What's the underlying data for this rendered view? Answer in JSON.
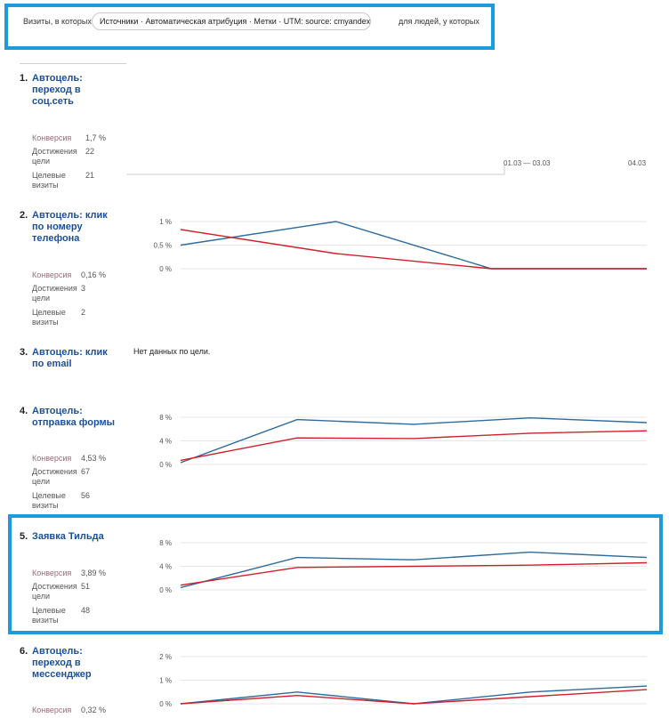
{
  "filter_bar": {
    "prefix": "Визиты, в которых",
    "segment": "Источники · Автоматическая атрибуция · Метки · UTM: source: cmyandex",
    "suffix": "для людей, у которых"
  },
  "labels": {
    "conversion": "Конверсия",
    "achievements": "Достижения цели",
    "target_visits": "Целевые визиты"
  },
  "goals": [
    {
      "num": "1.",
      "name": "Автоцель: переход в соц.сеть",
      "conversion": "1,7 %",
      "achievements": "22",
      "target_visits": "21"
    },
    {
      "num": "2.",
      "name": "Автоцель: клик по номеру телефона",
      "conversion": "0,16 %",
      "achievements": "3",
      "target_visits": "2"
    },
    {
      "num": "3.",
      "name": "Автоцель: клик по email",
      "no_data": "Нет данных по цели."
    },
    {
      "num": "4.",
      "name": "Автоцель: отправка формы",
      "conversion": "4,53 %",
      "achievements": "67",
      "target_visits": "56"
    },
    {
      "num": "5.",
      "name": "Заявка Тильда",
      "conversion": "3,89 %",
      "achievements": "51",
      "target_visits": "48"
    },
    {
      "num": "6.",
      "name": "Автоцель: переход в мессенджер",
      "conversion": "0,32 %"
    }
  ],
  "timeline": {
    "range_label": "01.03 — 03.03",
    "end_label": "04.03"
  },
  "colors": {
    "highlight": "#1a9bdc",
    "series_blue": "#2e6b9e",
    "series_red": "#d0202a",
    "grid": "#e6e6e6"
  },
  "chart_data": [
    {
      "type": "line",
      "goal": "Автоцель: клик по номеру телефона",
      "x": [
        0,
        1,
        2,
        3
      ],
      "y_ticks": [
        "1 %",
        "0,5 %",
        "0 %"
      ],
      "ylim": [
        0,
        1
      ],
      "series": [
        {
          "color": "#2e6b9e",
          "values": [
            0.5,
            1.0,
            0,
            0
          ]
        },
        {
          "color": "#d0202a",
          "values": [
            0.83,
            0.32,
            0,
            0
          ]
        }
      ]
    },
    {
      "type": "line",
      "goal": "Автоцель: отправка формы",
      "x": [
        0,
        1,
        2,
        3,
        4
      ],
      "y_ticks": [
        "8 %",
        "4 %",
        "0 %"
      ],
      "ylim": [
        0,
        8
      ],
      "series": [
        {
          "color": "#2e6b9e",
          "values": [
            0.3,
            7.6,
            6.8,
            7.9,
            7.1
          ]
        },
        {
          "color": "#d0202a",
          "values": [
            0.7,
            4.5,
            4.4,
            5.3,
            5.7
          ]
        }
      ]
    },
    {
      "type": "line",
      "goal": "Заявка Тильда",
      "x": [
        0,
        1,
        2,
        3,
        4
      ],
      "y_ticks": [
        "8 %",
        "4 %",
        "0 %"
      ],
      "ylim": [
        0,
        8
      ],
      "series": [
        {
          "color": "#2e6b9e",
          "values": [
            0.4,
            5.5,
            5.1,
            6.4,
            5.5
          ]
        },
        {
          "color": "#d0202a",
          "values": [
            0.8,
            3.8,
            4.0,
            4.2,
            4.6
          ]
        }
      ]
    },
    {
      "type": "line",
      "goal": "Автоцель: переход в мессенджер",
      "x": [
        0,
        1,
        2,
        3,
        4
      ],
      "y_ticks": [
        "2 %",
        "1 %",
        "0 %"
      ],
      "ylim": [
        0,
        2
      ],
      "series": [
        {
          "color": "#2e6b9e",
          "values": [
            0,
            0.5,
            0,
            0.5,
            0.75
          ]
        },
        {
          "color": "#d0202a",
          "values": [
            0,
            0.35,
            0,
            0.3,
            0.6
          ]
        }
      ]
    }
  ]
}
